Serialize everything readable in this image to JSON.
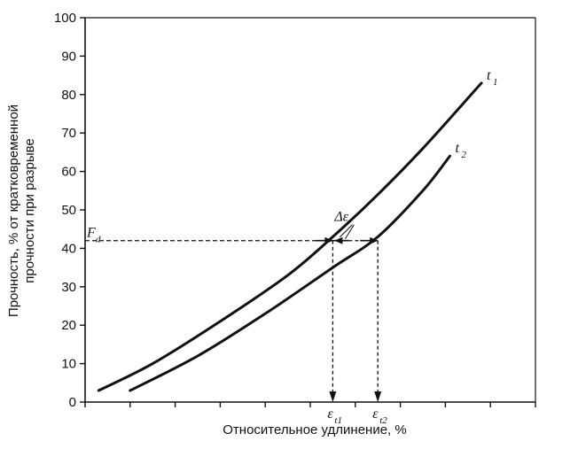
{
  "chart_data": {
    "type": "line",
    "ylabel_line1": "Прочность, % от кратковременной",
    "ylabel_line2": "прочности при разрыве",
    "xlabel": "Относительное удлинение, %",
    "ylim": [
      0,
      100
    ],
    "yticks": [
      0,
      10,
      20,
      30,
      40,
      50,
      60,
      70,
      80,
      90,
      100
    ],
    "xlim": [
      0,
      100
    ],
    "grid": false,
    "series": [
      {
        "name": "t",
        "subscript": "1",
        "x": [
          3,
          15,
          30,
          45,
          55,
          65,
          75,
          88
        ],
        "y": [
          3,
          10,
          21,
          33,
          43,
          54,
          66,
          83
        ]
      },
      {
        "name": "t",
        "subscript": "2",
        "x": [
          10,
          25,
          40,
          55,
          65,
          75,
          81
        ],
        "y": [
          3,
          12,
          23,
          35,
          43,
          55,
          64
        ]
      }
    ],
    "annotations": {
      "fd_label": "F",
      "fd_sub": "d",
      "fd_value": 42,
      "delta_label": "Δε",
      "eps1_label": "ε",
      "eps1_sub": "t1",
      "eps1_x": 55,
      "eps2_label": "ε",
      "eps2_sub": "t2",
      "eps2_x": 65
    }
  }
}
